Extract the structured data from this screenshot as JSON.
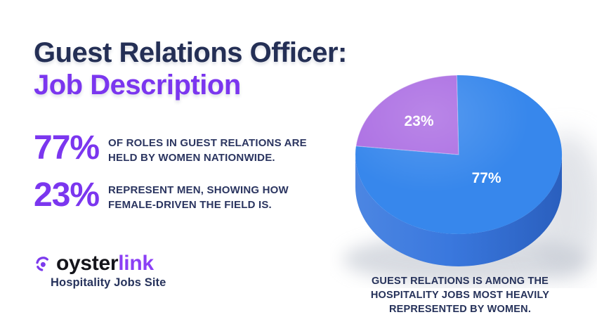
{
  "header": {
    "title_line1": "Guest Relations Officer:",
    "title_line2": "Job Description"
  },
  "stats": [
    {
      "value": "77%",
      "line1": "OF ROLES IN GUEST RELATIONS ARE",
      "line2": "HELD BY WOMEN NATIONWIDE."
    },
    {
      "value": "23%",
      "line1": "REPRESENT MEN, SHOWING HOW",
      "line2": "FEMALE-DRIVEN THE FIELD IS."
    }
  ],
  "logo": {
    "brand_part1": "oyster",
    "brand_part2": "link",
    "tagline": "Hospitality Jobs Site",
    "icon": "pearl-icon",
    "brand_color_dark": "#15151B",
    "brand_color_purple": "#8B3FF5"
  },
  "chart_data": {
    "type": "pie",
    "style": "3d",
    "title": "",
    "legend": "none",
    "labels": [
      "77%",
      "23%"
    ],
    "values": [
      77,
      23
    ],
    "slices": [
      {
        "label": "77%",
        "value": 77,
        "color": "#3787EC"
      },
      {
        "label": "23%",
        "value": 23,
        "color": "#AC6FE3"
      }
    ],
    "label_color": "#FFFFFF",
    "side_color_light": "#4C86E2",
    "side_color_dark": "#2A5FBE"
  },
  "caption": {
    "line1": "GUEST RELATIONS IS AMONG THE",
    "line2": "HOSPITALITY JOBS MOST HEAVILY",
    "line3": "REPRESENTED BY WOMEN."
  },
  "colors": {
    "title_navy": "#242F55",
    "accent_purple": "#7B36EF",
    "body_navy": "#2B3560",
    "caption_navy": "#26325A"
  }
}
